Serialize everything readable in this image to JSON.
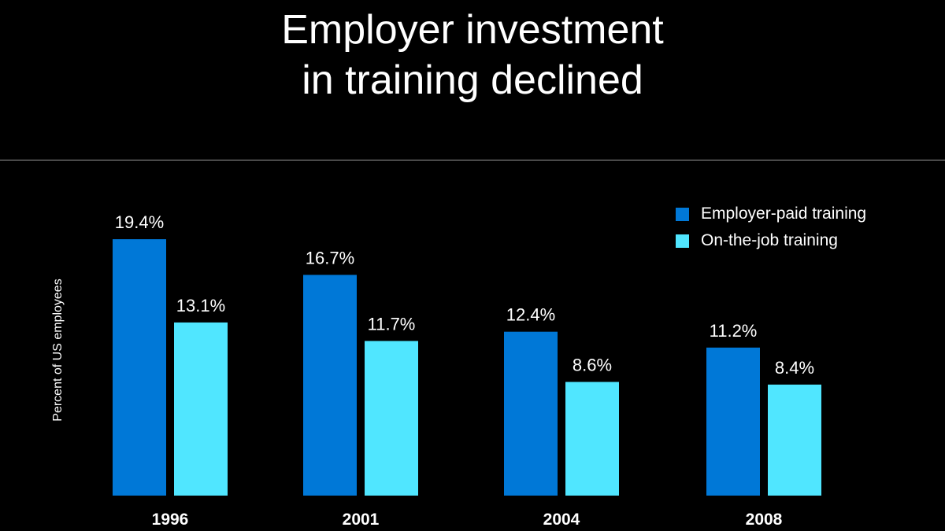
{
  "chart_data": {
    "type": "bar",
    "title_lines": [
      "Employer investment",
      "in training declined"
    ],
    "ylabel": "Percent of US employees",
    "categories": [
      "1996",
      "2001",
      "2004",
      "2008"
    ],
    "series": [
      {
        "name": "Employer-paid training",
        "color": "#0078d7",
        "values": [
          19.4,
          16.7,
          12.4,
          11.2
        ],
        "labels": [
          "19.4%",
          "16.7%",
          "12.4%",
          "11.2%"
        ]
      },
      {
        "name": "On-the-job training",
        "color": "#50e6ff",
        "values": [
          13.1,
          11.7,
          8.6,
          8.4
        ],
        "labels": [
          "13.1%",
          "11.7%",
          "8.6%",
          "8.4%"
        ]
      }
    ],
    "ylim": [
      0,
      20
    ],
    "grid": false,
    "legend_position": "top-right"
  }
}
